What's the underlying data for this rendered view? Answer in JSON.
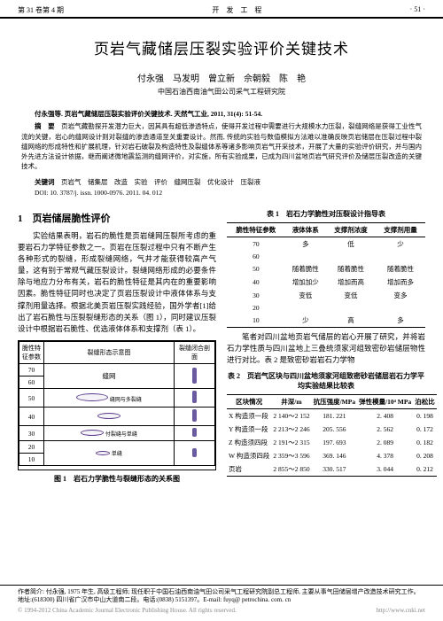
{
  "header": {
    "left": "第 31 卷第 4 期",
    "center": "开　发　工　程",
    "right": "· 51 ·"
  },
  "title": "页岩气藏储层压裂实验评价关键技术",
  "authors": "付永强　马发明　曾立新　佘朝毅　陈　艳",
  "affiliation": "中国石油西南油气田公司采气工程研究院",
  "citation": "付永强等. 页岩气藏储层压裂实验评价关键技术. 天然气工业, 2011, 31(4): 51-54.",
  "abstract_label": "摘　要",
  "abstract_body": "页岩气藏勘探开发潜力巨大，因其具有超低渗透特点，使得开发过程中需要进行大规模水力压裂，裂缝网络是获得工业性气流的关键，岩心的缝网设计则对裂缝的渗透通道至关重要设计。然而, 传统的实验与数值模拟方法难以准确反映页岩储层在压裂过程中裂缝网络的形成特性和扩展机理，针对岩石破裂及构造特性及裂缝体系等诸多影响页岩气开采技术，开展了大量的实验评价研究，并与国内外先进方法设计依据，继而阐述微地震监测的缝网评价，对实施，所有实验成果，已成为四川盆地页岩气研究评价及储层压裂改造的关键技术。",
  "keywords_label": "关键词",
  "keywords_body": "页岩气　储集层　改造　实验　评价　缝网压裂　优化设计　压裂液",
  "doi": "DOI: 10. 3787/j. issn. 1000-0976. 2011. 04. 012",
  "section1": {
    "heading": "1　页岩储层脆性评价",
    "p1": "实验结果表明，岩石的脆性是页岩缝网压裂所考虑的重要岩石力学特征参数之一。页岩在压裂过程中只有不断产生各种形式的裂缝，形成裂缝网络，气井才能获得较高产气量，这有别于常规气藏压裂设计。裂缝网络形成的必要条件除与地应力分布有关，岩石的脆性特征是其内在的重要影响因素。脆性特征同时也决定了页岩压裂设计中液体体系与支撑剂用量选择。根据北美页岩压裂实践经验，国外学者[1]给出了岩石脆性与压裂裂缝形态的关系（图 1），同时建议压裂设计中根据岩石脆性、优选液体体系和支撑剂（表 1）。"
  },
  "figure1": {
    "caption": "图 1　岩石力学脆性与裂缝形态的关系图",
    "col_headers": [
      "脆性特征参数",
      "裂缝形态示意图",
      "裂缝闭合剖面"
    ],
    "rows": [
      "70",
      "60",
      "50",
      "40",
      "30",
      "20",
      "10"
    ],
    "row_labels": [
      "缝网",
      "缝网",
      "缝网与多裂缝",
      "多裂缝",
      "多裂缝",
      "付裂缝与单缝",
      "单缝"
    ]
  },
  "table1": {
    "caption": "表 1　岩石力学脆性对压裂设计指导表",
    "headers": [
      "脆性特征参数",
      "液体体系",
      "支撑剂浓度",
      "支撑剂用量"
    ],
    "rows": [
      [
        "70",
        "多",
        "低",
        "少"
      ],
      [
        "60",
        "",
        "",
        ""
      ],
      [
        "50",
        "随着脆性",
        "随着脆性",
        "随着脆性"
      ],
      [
        "40",
        "增加加少",
        "增加而高",
        "增加而多"
      ],
      [
        "30",
        "变低",
        "变低",
        "变多"
      ],
      [
        "20",
        "",
        "",
        ""
      ],
      [
        "10",
        "少",
        "高",
        "多"
      ]
    ]
  },
  "p2": "笔者对四川盆地页岩气储层的岩心开展了研究，并将岩石力学性质与四川盆地上三叠统须家河组致密砂岩储层物性进行对比。表 2 是致密砂岩岩石力学物",
  "table2": {
    "caption": "表 2　页岩气区块与四川盆地须家河组致密砂岩储层岩石力学平均实验结果比较表",
    "headers": [
      "区块情况",
      "井深/m",
      "抗压强度/MPa",
      "弹性模量/10⁴ MPa",
      "泊松比"
    ],
    "rows": [
      [
        "X 构造须一段",
        "2 140～2 152",
        "181. 221",
        "2. 408",
        "0. 198"
      ],
      [
        "Y 构造须一段",
        "2 213～2 246",
        "205. 556",
        "2. 562",
        "0. 172"
      ],
      [
        "Z 构造须四段",
        "2 191～2 315",
        "197. 693",
        "2. 089",
        "0. 182"
      ],
      [
        "W 构造须四段",
        "2 359～3 596",
        "369. 146",
        "4. 378",
        "0. 208"
      ],
      [
        "页岩",
        "2 855～2 850",
        "330. 517",
        "3. 044",
        "0. 212"
      ]
    ]
  },
  "footer": {
    "line1": "作者简介: 付永强, 1975 年生, 高级工程师; 现任职于中国石油西南油气田公司采气工程研究院副总工程师, 主要从事气田储层增产改造技术研究工作。地址:(618300) 四川省广汉市中山大道南二段。电话:(0838) 5151397。E-mail: fuyq@ petrochina. com. cn",
    "copyright_left": "© 1994-2012 China Academic Journal Electronic Publishing House. All rights reserved.",
    "copyright_right": "http://www.cnki.net"
  }
}
